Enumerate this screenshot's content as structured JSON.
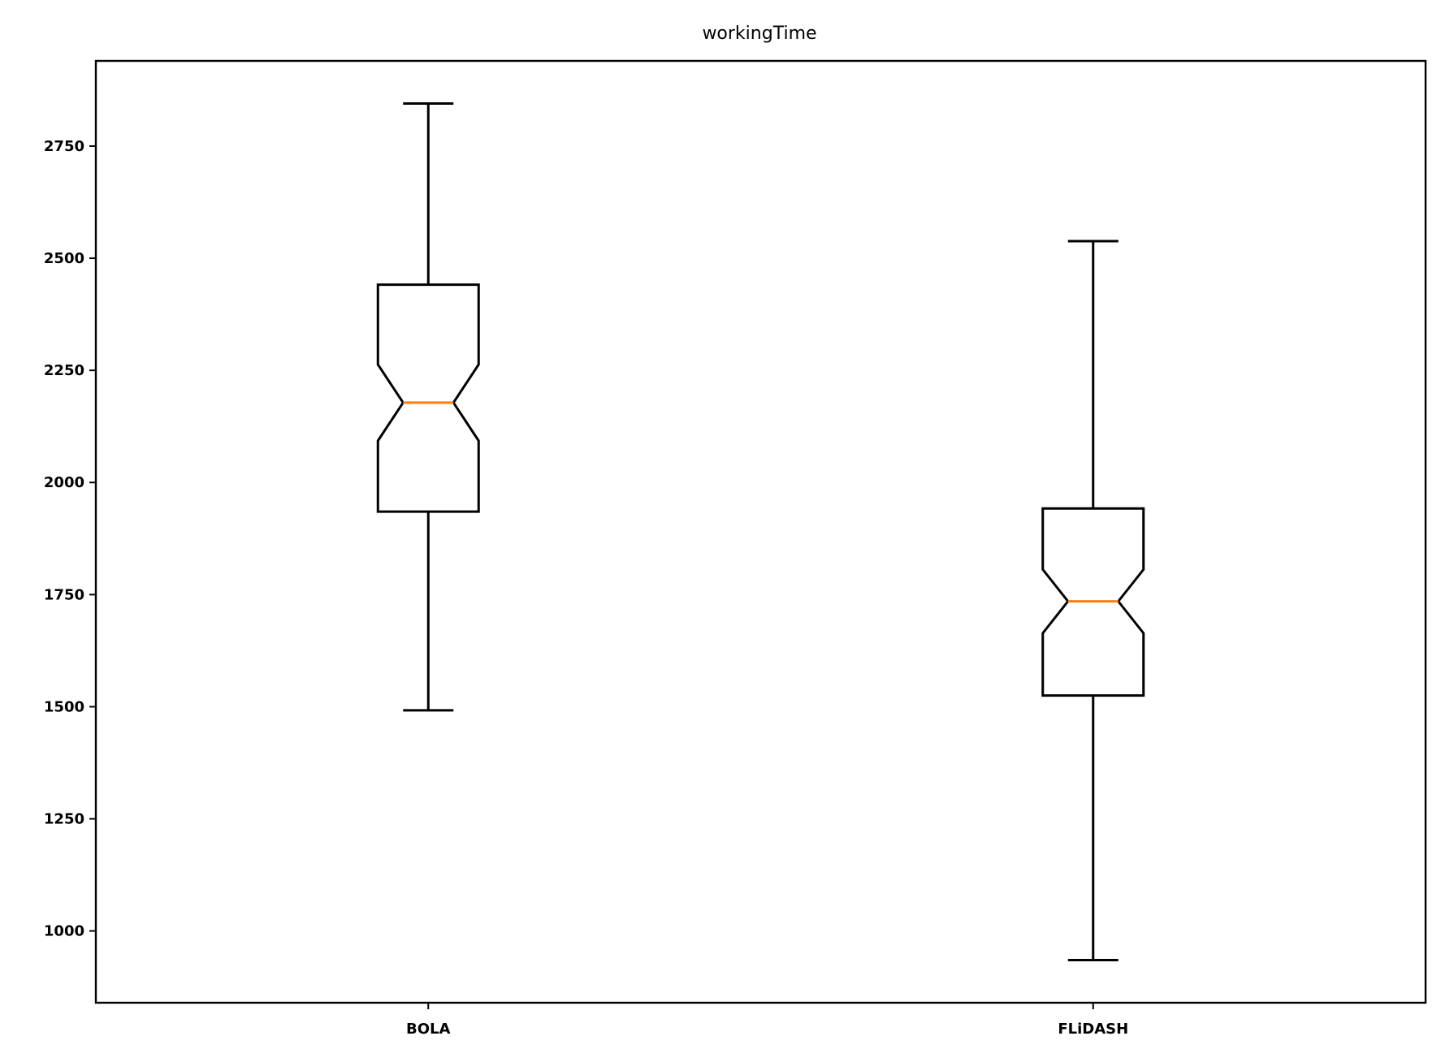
{
  "chart_data": {
    "type": "box",
    "variant": "notched",
    "title": "workingTime",
    "xlabel": "",
    "ylabel": "",
    "categories": [
      "BOLA",
      "FLiDASH"
    ],
    "yticks": [
      1000,
      1250,
      1500,
      1750,
      2000,
      2250,
      2500,
      2750
    ],
    "ylim": [
      840,
      2940
    ],
    "grid": false,
    "colors": {
      "box": "#000000",
      "median": "#ff7f0e"
    },
    "boxes": [
      {
        "category": "BOLA",
        "whisker_low": 1492,
        "q1": 1935,
        "notch_low": 2093,
        "median": 2178,
        "notch_high": 2263,
        "q3": 2441,
        "whisker_high": 2845
      },
      {
        "category": "FLiDASH",
        "whisker_low": 935,
        "q1": 1525,
        "notch_low": 1664,
        "median": 1735,
        "notch_high": 1806,
        "q3": 1942,
        "whisker_high": 2538
      }
    ]
  }
}
